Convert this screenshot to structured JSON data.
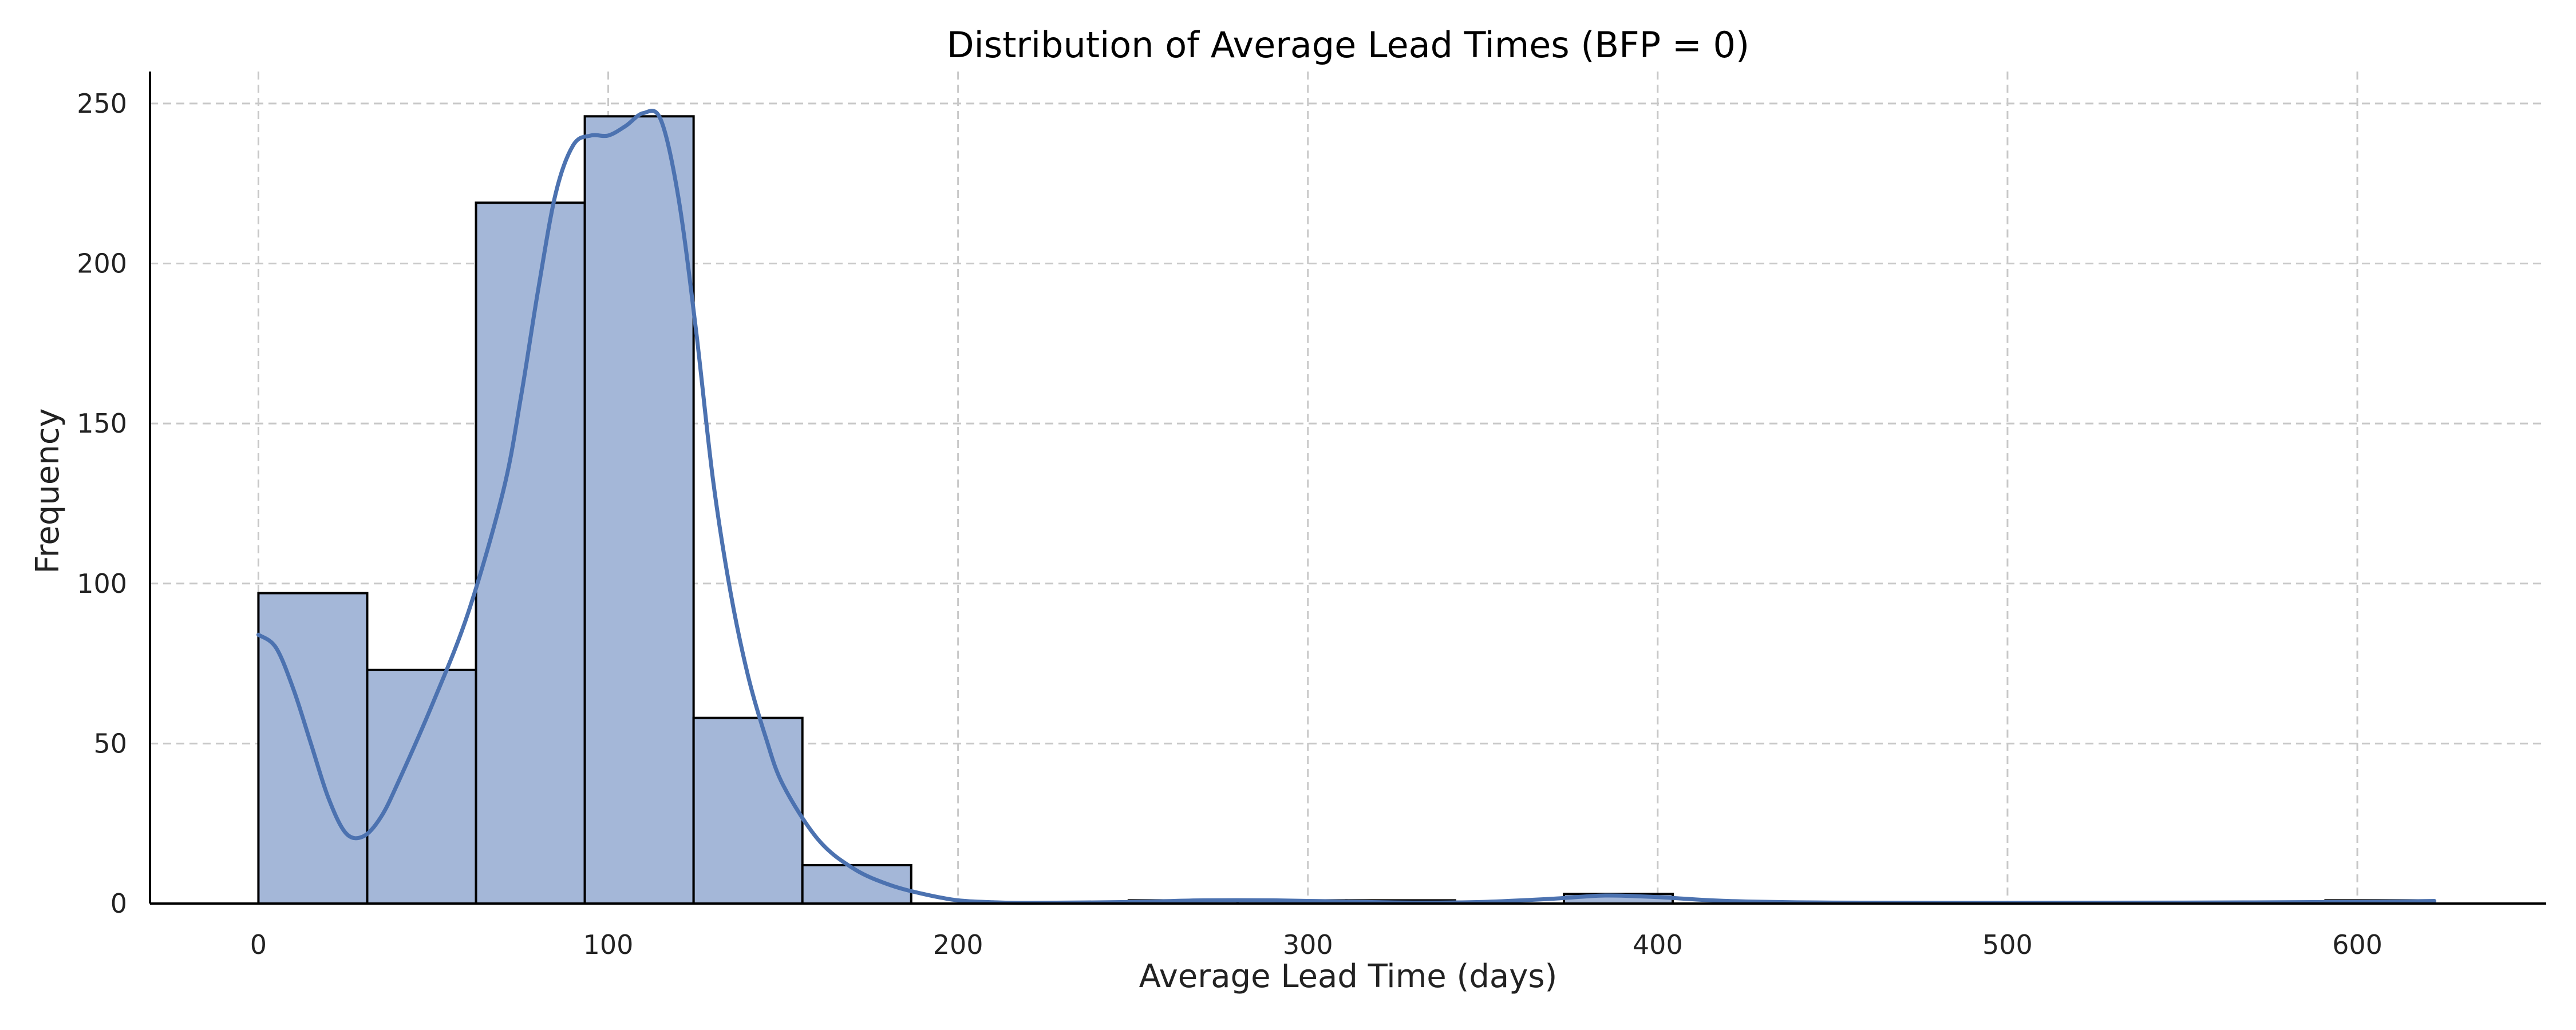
{
  "chart_data": {
    "type": "bar",
    "title": "Distribution of Average Lead Times (BFP = 0)",
    "xlabel": "Average Lead Time (days)",
    "ylabel": "Frequency",
    "xlim": [
      -31,
      654
    ],
    "ylim": [
      0,
      260
    ],
    "xticks": [
      0,
      100,
      200,
      300,
      400,
      500,
      600
    ],
    "yticks": [
      0,
      50,
      100,
      150,
      200,
      250
    ],
    "grid": true,
    "legend": "none",
    "bar_color": "#a4b7d8",
    "line_color": "#4c72b0",
    "bins": [
      {
        "x0": 0,
        "x1": 31.1,
        "count": 97
      },
      {
        "x0": 31.1,
        "x1": 62.2,
        "count": 73
      },
      {
        "x0": 62.2,
        "x1": 93.3,
        "count": 219
      },
      {
        "x0": 93.3,
        "x1": 124.4,
        "count": 246
      },
      {
        "x0": 124.4,
        "x1": 155.5,
        "count": 58
      },
      {
        "x0": 155.5,
        "x1": 186.6,
        "count": 12
      },
      {
        "x0": 186.6,
        "x1": 217.7,
        "count": 0
      },
      {
        "x0": 217.7,
        "x1": 248.8,
        "count": 0
      },
      {
        "x0": 248.8,
        "x1": 279.9,
        "count": 1
      },
      {
        "x0": 279.9,
        "x1": 311.0,
        "count": 1
      },
      {
        "x0": 311.0,
        "x1": 342.1,
        "count": 1
      },
      {
        "x0": 342.1,
        "x1": 373.2,
        "count": 0
      },
      {
        "x0": 373.2,
        "x1": 404.3,
        "count": 3
      },
      {
        "x0": 404.3,
        "x1": 435.4,
        "count": 0
      },
      {
        "x0": 435.4,
        "x1": 466.5,
        "count": 0
      },
      {
        "x0": 466.5,
        "x1": 497.6,
        "count": 0
      },
      {
        "x0": 497.6,
        "x1": 528.7,
        "count": 0
      },
      {
        "x0": 528.7,
        "x1": 559.8,
        "count": 0
      },
      {
        "x0": 559.8,
        "x1": 590.9,
        "count": 0
      },
      {
        "x0": 590.9,
        "x1": 622.0,
        "count": 1
      }
    ],
    "kde": {
      "x": [
        0,
        5,
        10,
        15,
        20,
        25,
        30,
        35,
        40,
        50,
        60,
        70,
        75,
        80,
        85,
        90,
        95,
        100,
        105,
        110,
        115,
        120,
        125,
        130,
        135,
        140,
        145,
        150,
        160,
        170,
        180,
        190,
        200,
        210,
        220,
        250,
        270,
        290,
        310,
        330,
        350,
        370,
        385,
        400,
        420,
        450,
        500,
        550,
        600,
        622
      ],
      "y": [
        84,
        80,
        67,
        50,
        33,
        22,
        21,
        27,
        38,
        63,
        91,
        129,
        158,
        192,
        222,
        237,
        240,
        240,
        243,
        247,
        245,
        221,
        180,
        132,
        97,
        71,
        52,
        37,
        20,
        11,
        6,
        3,
        1,
        0.4,
        0.2,
        0.5,
        1,
        1,
        0.6,
        0.3,
        0.5,
        1.5,
        2.5,
        2,
        0.8,
        0.3,
        0.2,
        0.3,
        0.5,
        0.8
      ]
    }
  }
}
